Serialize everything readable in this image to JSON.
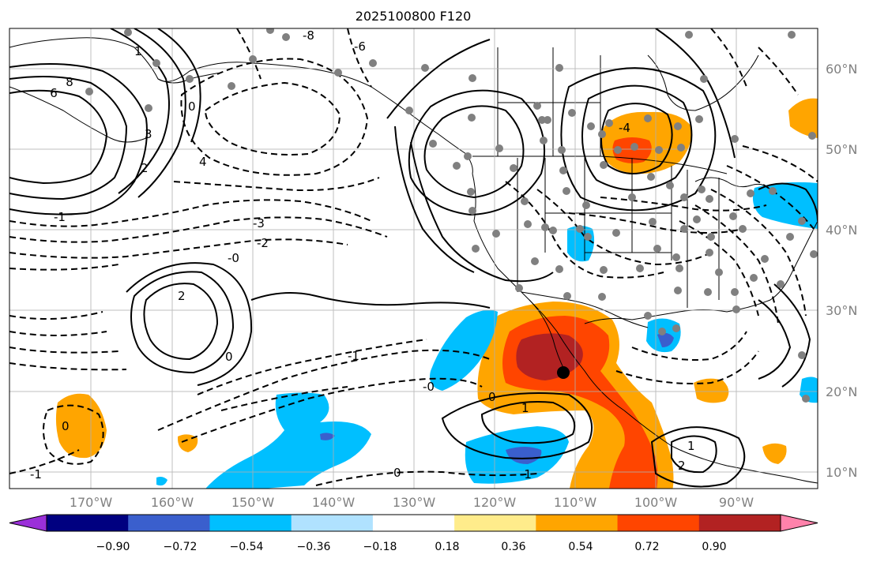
{
  "title": "2025100800 F120",
  "map": {
    "lon_ticks": [
      "170°W",
      "160°W",
      "150°W",
      "140°W",
      "130°W",
      "120°W",
      "110°W",
      "100°W",
      "90°W"
    ],
    "lat_ticks": [
      "60°N",
      "50°N",
      "40°N",
      "30°N",
      "20°N",
      "10°N"
    ],
    "contour_labels": [
      "-8",
      "-6",
      "8",
      "6",
      "0",
      "3",
      "2",
      "4",
      "1",
      "-1",
      "-3",
      "-2",
      "-0",
      "-4",
      "2",
      "0",
      "-1",
      "0",
      "1",
      "-1",
      "-0",
      "0",
      "1",
      "2",
      "-1",
      "0"
    ]
  },
  "colorbar": {
    "ticks": [
      "−0.90",
      "−0.72",
      "−0.54",
      "−0.36",
      "−0.18",
      "0.18",
      "0.36",
      "0.54",
      "0.72",
      "0.90"
    ],
    "colors": [
      "#9b30d9",
      "#000080",
      "#3a5fcd",
      "#00bfff",
      "#b0e2ff",
      "#ffffff",
      "#ffec8b",
      "#ffa500",
      "#ff4500",
      "#b22222",
      "#ff82ab"
    ]
  }
}
